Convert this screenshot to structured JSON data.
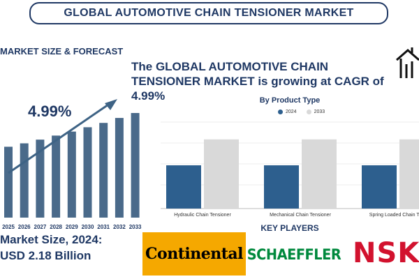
{
  "header": {
    "title": "GLOBAL AUTOMOTIVE CHAIN TENSIONER MARKET"
  },
  "left_panel": {
    "heading": "MARKET SIZE & FORECAST",
    "cagr": "4.99%",
    "market_size_label": "Market Size, 2024:",
    "market_size_value": "USD 2.18 Billion"
  },
  "headline": "The GLOBAL AUTOMOTIVE CHAIN TENSIONER MARKET is growing at CAGR of 4.99%",
  "key_players": {
    "heading": "KEY PLAYERS",
    "logos": [
      "Continental",
      "SCHAEFFLER",
      "NSK"
    ]
  },
  "colors": {
    "navy": "#1f3864",
    "bar_left": "#4a6a8a",
    "series_2024": "#2d5f8e",
    "series_2033": "#d9d9d9"
  },
  "icons": [
    "house-chart-icon",
    "trend-arrow-icon"
  ],
  "chart_data": [
    {
      "type": "bar",
      "title": "",
      "categories": [
        "2025",
        "2026",
        "2027",
        "2028",
        "2029",
        "2030",
        "2031",
        "2032",
        "2033"
      ],
      "values": [
        2.29,
        2.4,
        2.52,
        2.65,
        2.78,
        2.92,
        3.06,
        3.22,
        3.38
      ],
      "trend_arrow": true
    },
    {
      "type": "bar",
      "title": "By Product Type",
      "categories": [
        "Hydraulic Chain Tensioner",
        "Mechanical Chain Tensioner",
        "Spring Loaded Chain Tens"
      ],
      "series": [
        {
          "name": "2024",
          "values": [
            0.5,
            0.5,
            0.5
          ]
        },
        {
          "name": "2033",
          "values": [
            0.8,
            0.8,
            0.8
          ]
        }
      ],
      "ylim": [
        0,
        1
      ],
      "legend": "top-center"
    }
  ]
}
